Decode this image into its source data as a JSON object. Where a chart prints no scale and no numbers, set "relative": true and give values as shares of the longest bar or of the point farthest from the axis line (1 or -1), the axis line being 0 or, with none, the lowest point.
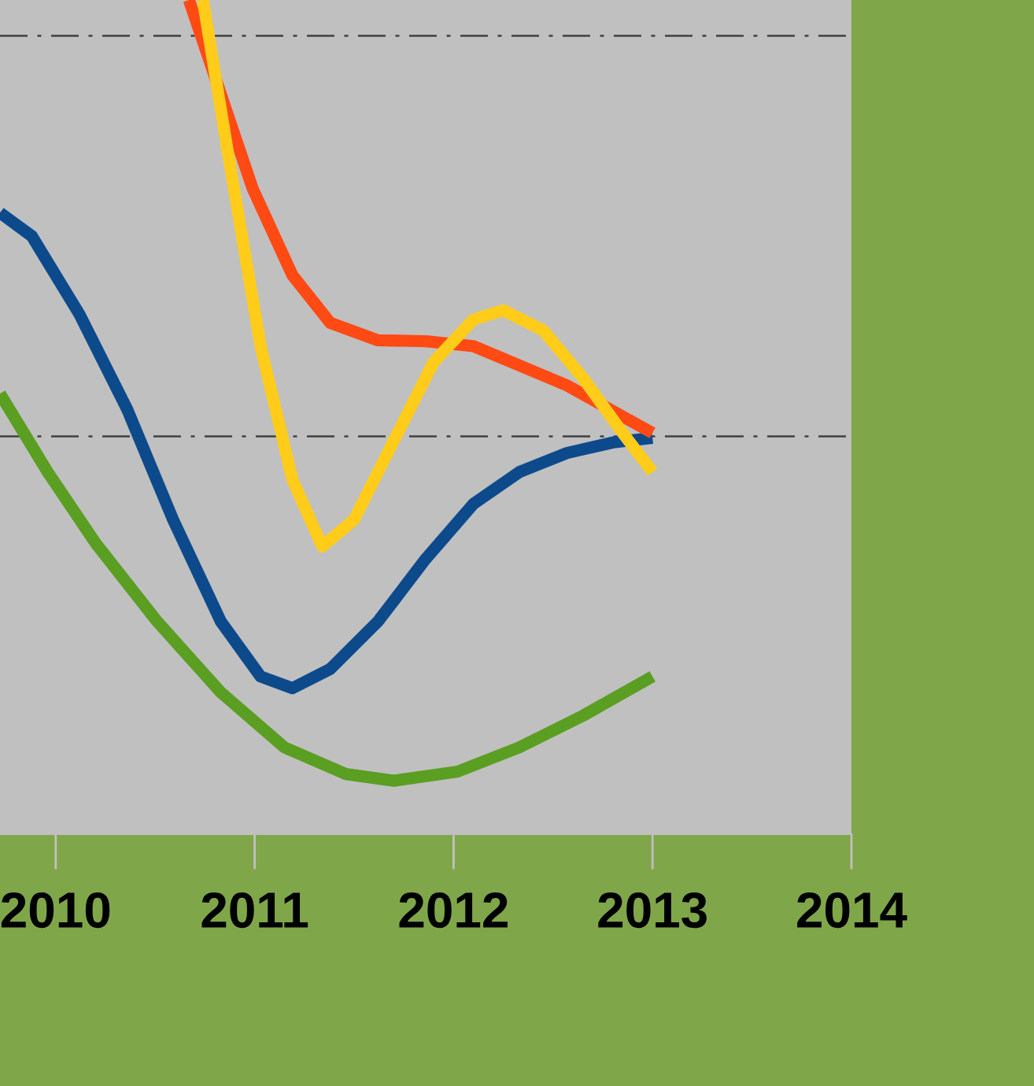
{
  "chart_data": {
    "type": "line",
    "relative": true,
    "xlim": [
      2009.72,
      2014
    ],
    "xticks": [
      2010,
      2011,
      2012,
      2013,
      2014
    ],
    "grid": false,
    "legend": false,
    "ref_lines": [
      {
        "axis": "y",
        "value": 0.957,
        "color": "#404040",
        "line_style": "dashed"
      },
      {
        "axis": "y",
        "value": 0.477,
        "color": "#404040",
        "line_style": "dashed"
      }
    ],
    "series": [
      {
        "color": "#0d4a8c",
        "x": [
          2009.72,
          2009.88,
          2010.12,
          2010.36,
          2010.59,
          2010.83,
          2011.03,
          2011.19,
          2011.38,
          2011.62,
          2011.86,
          2012.1,
          2012.33,
          2012.57,
          2012.81,
          2013.0
        ],
        "values": [
          0.745,
          0.717,
          0.623,
          0.509,
          0.377,
          0.255,
          0.189,
          0.175,
          0.198,
          0.255,
          0.33,
          0.396,
          0.434,
          0.457,
          0.47,
          0.475
        ]
      },
      {
        "color": "#5a9e22",
        "x": [
          2009.72,
          2009.96,
          2010.2,
          2010.51,
          2010.83,
          2011.15,
          2011.46,
          2011.7,
          2012.02,
          2012.33,
          2012.65,
          2013.0
        ],
        "values": [
          0.528,
          0.434,
          0.349,
          0.255,
          0.17,
          0.104,
          0.072,
          0.064,
          0.075,
          0.104,
          0.142,
          0.189
        ]
      },
      {
        "color": "#ff4a14",
        "x": [
          2010.67,
          2010.83,
          2010.99,
          2011.19,
          2011.38,
          2011.62,
          2011.86,
          2012.1,
          2012.33,
          2012.57,
          2012.81,
          2013.0
        ],
        "values": [
          1.0,
          0.887,
          0.774,
          0.67,
          0.613,
          0.592,
          0.591,
          0.585,
          0.562,
          0.538,
          0.506,
          0.481
        ]
      },
      {
        "color": "#ffcc1a",
        "x": [
          2010.74,
          2010.87,
          2011.03,
          2011.19,
          2011.34,
          2011.5,
          2011.7,
          2011.9,
          2012.1,
          2012.25,
          2012.45,
          2012.65,
          2012.85,
          2013.0
        ],
        "values": [
          1.0,
          0.811,
          0.585,
          0.425,
          0.345,
          0.377,
          0.472,
          0.566,
          0.617,
          0.628,
          0.604,
          0.547,
          0.481,
          0.434
        ]
      }
    ]
  }
}
